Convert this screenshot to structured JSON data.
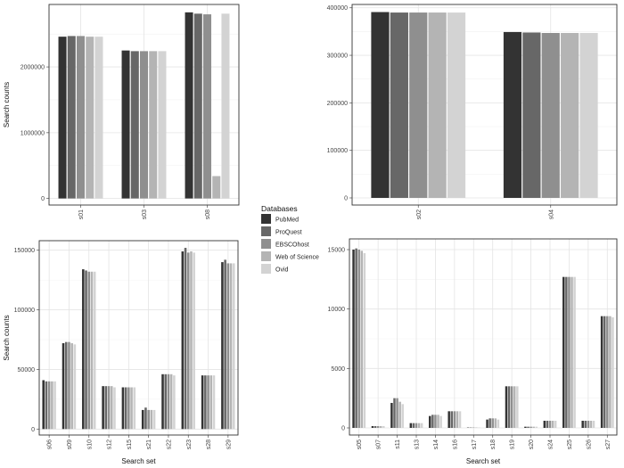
{
  "legend": {
    "title": "Databases",
    "items": [
      {
        "name": "PubMed",
        "color": "#333333"
      },
      {
        "name": "ProQuest",
        "color": "#676767"
      },
      {
        "name": "EBSCOhost",
        "color": "#8f8f8f"
      },
      {
        "name": "Web of Science",
        "color": "#b4b4b4"
      },
      {
        "name": "Ovid",
        "color": "#d3d3d3"
      }
    ]
  },
  "chart_data": [
    {
      "type": "bar",
      "categories": [
        "s01",
        "s03",
        "s08"
      ],
      "series": [
        {
          "name": "PubMed",
          "values": [
            2460000,
            2250000,
            2830000
          ]
        },
        {
          "name": "ProQuest",
          "values": [
            2470000,
            2240000,
            2810000
          ]
        },
        {
          "name": "EBSCOhost",
          "values": [
            2470000,
            2240000,
            2800000
          ]
        },
        {
          "name": "Web of Science",
          "values": [
            2460000,
            2240000,
            340000
          ]
        },
        {
          "name": "Ovid",
          "values": [
            2460000,
            2240000,
            2810000
          ]
        }
      ],
      "ylim": [
        -100000,
        2950000
      ],
      "yticks": [
        0,
        1000000,
        2000000
      ],
      "xlabel": "",
      "ylabel": "Search counts",
      "grid": true
    },
    {
      "type": "bar",
      "categories": [
        "s02",
        "s04"
      ],
      "series": [
        {
          "name": "PubMed",
          "values": [
            391000,
            349000
          ]
        },
        {
          "name": "ProQuest",
          "values": [
            390000,
            348000
          ]
        },
        {
          "name": "EBSCOhost",
          "values": [
            390000,
            347000
          ]
        },
        {
          "name": "Web of Science",
          "values": [
            390000,
            347000
          ]
        },
        {
          "name": "Ovid",
          "values": [
            390000,
            347000
          ]
        }
      ],
      "ylim": [
        -15000,
        407000
      ],
      "yticks": [
        0,
        100000,
        200000,
        300000,
        400000
      ],
      "xlabel": "",
      "ylabel": "",
      "grid": true
    },
    {
      "type": "bar",
      "categories": [
        "s06",
        "s09",
        "s10",
        "s12",
        "s15",
        "s21",
        "s22",
        "s23",
        "s28",
        "s29"
      ],
      "series": [
        {
          "name": "PubMed",
          "values": [
            41000,
            72000,
            134000,
            36000,
            35000,
            16000,
            46000,
            149000,
            45000,
            140000
          ]
        },
        {
          "name": "ProQuest",
          "values": [
            40000,
            73000,
            133000,
            36000,
            35000,
            18000,
            46000,
            152000,
            45000,
            142000
          ]
        },
        {
          "name": "EBSCOhost",
          "values": [
            40000,
            73000,
            132000,
            36000,
            35000,
            16000,
            46000,
            148000,
            45000,
            139000
          ]
        },
        {
          "name": "Web of Science",
          "values": [
            40000,
            72000,
            132000,
            36000,
            35000,
            16000,
            46000,
            149000,
            45000,
            139000
          ]
        },
        {
          "name": "Ovid",
          "values": [
            40000,
            71000,
            132000,
            35000,
            35000,
            16000,
            45000,
            148000,
            45000,
            139000
          ]
        }
      ],
      "ylim": [
        -5000,
        158000
      ],
      "yticks": [
        0,
        50000,
        100000,
        150000
      ],
      "xlabel": "Search set",
      "ylabel": "Search counts",
      "grid": true
    },
    {
      "type": "bar",
      "categories": [
        "s05",
        "s07",
        "s11",
        "s13",
        "s14",
        "s16",
        "s17",
        "s18",
        "s19",
        "s20",
        "s24",
        "s25",
        "s26",
        "s27"
      ],
      "series": [
        {
          "name": "PubMed",
          "values": [
            15000,
            150,
            2100,
            400,
            1000,
            1400,
            30,
            700,
            3500,
            100,
            600,
            12700,
            600,
            9400
          ]
        },
        {
          "name": "ProQuest",
          "values": [
            15100,
            150,
            2500,
            400,
            1100,
            1400,
            30,
            800,
            3500,
            100,
            600,
            12700,
            600,
            9400
          ]
        },
        {
          "name": "EBSCOhost",
          "values": [
            15000,
            150,
            2500,
            400,
            1100,
            1400,
            30,
            800,
            3500,
            100,
            600,
            12700,
            600,
            9400
          ]
        },
        {
          "name": "Web of Science",
          "values": [
            14900,
            150,
            2200,
            400,
            1100,
            1400,
            30,
            800,
            3500,
            100,
            600,
            12700,
            600,
            9400
          ]
        },
        {
          "name": "Ovid",
          "values": [
            14700,
            150,
            2000,
            400,
            1000,
            1400,
            30,
            700,
            3500,
            100,
            600,
            12700,
            600,
            9300
          ]
        }
      ],
      "ylim": [
        -600,
        15900
      ],
      "yticks": [
        0,
        5000,
        10000,
        15000
      ],
      "xlabel": "Search set",
      "ylabel": "",
      "grid": true
    }
  ]
}
